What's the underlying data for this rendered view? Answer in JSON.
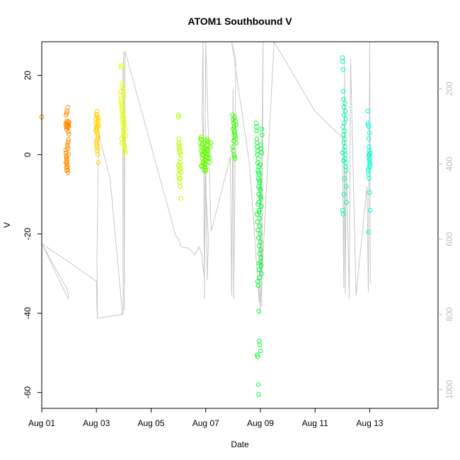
{
  "chart_data": {
    "type": "scatter",
    "title": "ATOM1 Southbound V",
    "xlabel": "Date",
    "ylabel": "V",
    "xlim": [
      0,
      14.5
    ],
    "ylim": [
      -64,
      28.5
    ],
    "x_ticks": [
      {
        "value": 0,
        "label": "Aug 01"
      },
      {
        "value": 2,
        "label": "Aug 03"
      },
      {
        "value": 4,
        "label": "Aug 05"
      },
      {
        "value": 6,
        "label": "Aug 07"
      },
      {
        "value": 8,
        "label": "Aug 09"
      },
      {
        "value": 10,
        "label": "Aug 11"
      },
      {
        "value": 12,
        "label": "Aug 13"
      }
    ],
    "y_ticks": [
      -60,
      -40,
      -20,
      0,
      20
    ],
    "right_axis": {
      "ylim": [
        1050,
        75
      ],
      "ticks": [
        200,
        400,
        600,
        800,
        1000
      ],
      "color": "#bebebe"
    },
    "trace_color": "#c8c8c8",
    "trace": [
      [
        0.0,
        612
      ],
      [
        0.92,
        732
      ],
      [
        0.96,
        745
      ],
      [
        0.98,
        760
      ],
      [
        0.0,
        612
      ],
      [
        0.98,
        660
      ],
      [
        2.0,
        712
      ],
      [
        2.02,
        780
      ],
      [
        2.04,
        810
      ],
      [
        2.02,
        650
      ],
      [
        2.08,
        320
      ],
      [
        2.5,
        440
      ],
      [
        2.9,
        755
      ],
      [
        2.95,
        800
      ],
      [
        2.05,
        810
      ],
      [
        2.98,
        800
      ],
      [
        2.96,
        200
      ],
      [
        3.0,
        100
      ],
      [
        3.02,
        790
      ],
      [
        3.05,
        100
      ],
      [
        4.9,
        590
      ],
      [
        5.0,
        600
      ],
      [
        5.1,
        620
      ],
      [
        5.4,
        625
      ],
      [
        5.6,
        642
      ],
      [
        5.75,
        620
      ],
      [
        5.85,
        640
      ],
      [
        5.95,
        705
      ],
      [
        6.0,
        400
      ],
      [
        6.05,
        710
      ],
      [
        6.1,
        600
      ],
      [
        5.86,
        270
      ],
      [
        5.9,
        75
      ],
      [
        5.95,
        760
      ],
      [
        6.0,
        75
      ],
      [
        6.2,
        580
      ],
      [
        6.9,
        380
      ],
      [
        6.95,
        750
      ],
      [
        7.0,
        200
      ],
      [
        7.02,
        760
      ],
      [
        7.05,
        600
      ],
      [
        7.1,
        120
      ],
      [
        6.95,
        75
      ],
      [
        7.6,
        400
      ],
      [
        7.8,
        600
      ],
      [
        7.95,
        770
      ],
      [
        8.0,
        400
      ],
      [
        8.05,
        780
      ],
      [
        8.1,
        75
      ],
      [
        7.98,
        800
      ],
      [
        8.5,
        75
      ],
      [
        10.0,
        260
      ],
      [
        11.0,
        330
      ],
      [
        11.05,
        730
      ],
      [
        11.08,
        120
      ],
      [
        11.1,
        745
      ],
      [
        11.15,
        400
      ],
      [
        11.25,
        760
      ],
      [
        11.3,
        120
      ],
      [
        11.5,
        750
      ],
      [
        11.9,
        460
      ],
      [
        11.95,
        740
      ],
      [
        12.0,
        75
      ],
      [
        12.02,
        720
      ]
    ],
    "series": [
      {
        "color": "#ff8c00",
        "x": [
          0.0,
          0.88,
          0.89,
          0.9,
          0.91,
          0.92,
          0.93,
          0.94,
          0.95,
          0.96,
          0.97,
          0.98,
          0.99,
          1.0,
          0.88,
          0.89,
          0.9,
          0.91,
          0.92,
          0.93,
          0.94,
          0.95,
          0.96,
          0.97,
          0.88,
          0.9,
          0.92,
          0.94,
          0.96,
          0.98,
          0.89,
          0.91,
          0.93,
          0.95,
          0.97,
          0.99,
          0.9,
          0.92,
          0.94,
          0.96
        ],
        "y": [
          9.5,
          7.5,
          8,
          7,
          6.5,
          8.5,
          7.2,
          7.8,
          6.9,
          8.2,
          7.4,
          7.7,
          7.1,
          8.3,
          1.2,
          0.5,
          -0.3,
          -1,
          -1.8,
          -2.5,
          -3,
          -3.8,
          -4.5,
          0,
          -2,
          -3.2,
          -4,
          2.5,
          3.2,
          3.8,
          10,
          10.5,
          11,
          12,
          5.8,
          5.2,
          -0.5,
          -1.5,
          2,
          1.5
        ]
      },
      {
        "color": "#ffd000",
        "x": [
          1.98,
          1.99,
          2.0,
          2.01,
          2.02,
          2.03,
          2.04,
          2.05,
          2.06,
          2.07,
          1.99,
          2.01,
          2.03,
          2.05,
          2.07,
          1.98,
          2.0,
          2.02,
          2.04,
          2.06,
          2.01,
          2.03,
          2.05,
          2.02,
          2.04,
          2.06,
          2.08,
          2.0
        ],
        "y": [
          8,
          9,
          7,
          6,
          10,
          11,
          5,
          4,
          8.5,
          7.5,
          3,
          2,
          1,
          0,
          -2,
          6,
          6.5,
          9.5,
          5.5,
          4.5,
          3.5,
          2.5,
          1.5,
          7,
          8,
          6.8,
          9.2,
          10.2
        ]
      },
      {
        "color": "#e6ff00",
        "x": [
          2.88,
          2.89,
          2.9,
          2.91,
          2.92,
          2.93,
          2.94,
          2.95,
          2.96,
          2.97,
          2.98,
          2.99,
          3.0,
          3.01,
          3.02,
          3.03,
          3.04,
          3.05,
          3.06,
          3.07,
          2.9,
          2.92,
          2.94,
          2.96,
          2.98,
          3.0,
          3.02,
          2.91,
          2.93,
          2.95,
          2.97,
          2.99,
          3.01,
          3.03,
          3.05,
          2.92,
          2.94,
          2.96,
          2.98
        ],
        "y": [
          15,
          16,
          14,
          13,
          12,
          11,
          10,
          9,
          8,
          7,
          6,
          5,
          4.5,
          3.5,
          2.5,
          2,
          1.5,
          1,
          0.5,
          5,
          22,
          22.5,
          18,
          17,
          16.5,
          15.5,
          14.5,
          13.5,
          12.5,
          11.5,
          10.5,
          9.5,
          8.5,
          7.5,
          6.5,
          4,
          3,
          8,
          6
        ]
      },
      {
        "color": "#b2ff00",
        "x": [
          5.0,
          5.01,
          5.02,
          5.03,
          5.04,
          5.05,
          5.06,
          5.07,
          5.08,
          5.09,
          5.01,
          5.03,
          5.05,
          5.07,
          5.09,
          5.02,
          5.04,
          5.06,
          5.08,
          5.0,
          5.03,
          5.05,
          5.07
        ],
        "y": [
          9.5,
          10,
          4,
          2.5,
          1.5,
          0.5,
          -1,
          -2,
          -3.5,
          -4.5,
          -5,
          -6,
          -7,
          -8,
          -11,
          3,
          2,
          1,
          0,
          -2.5,
          -3,
          -4,
          -6
        ]
      },
      {
        "color": "#66ff00",
        "x": [
          5.8,
          5.82,
          5.84,
          5.86,
          5.88,
          5.9,
          5.92,
          5.94,
          5.96,
          5.98,
          6.0,
          6.02,
          6.04,
          6.06,
          6.08,
          6.1,
          6.12,
          6.14,
          6.16,
          6.18,
          5.81,
          5.83,
          5.85,
          5.87,
          5.89,
          5.91,
          5.93,
          5.95,
          5.97,
          5.99,
          6.01,
          6.03,
          6.05,
          6.07,
          6.09,
          6.11,
          5.85,
          5.9,
          5.95,
          6.0,
          6.05,
          5.88,
          5.92,
          5.96,
          6.02,
          5.84,
          5.94,
          6.04
        ],
        "y": [
          3,
          2,
          1,
          0,
          -1,
          -2,
          -3,
          -4,
          -2.5,
          -1.5,
          0.5,
          1.5,
          2.5,
          3.5,
          1,
          0,
          -1,
          -2,
          2,
          3,
          4,
          4.5,
          3.8,
          2.8,
          1.8,
          0.8,
          -0.2,
          -1.2,
          -2.2,
          -3.2,
          -3.8,
          0.2,
          1.2,
          2.2,
          3.2,
          -0.8,
          -3,
          0,
          1,
          -4,
          4,
          2.5,
          -1.8,
          0.6,
          3.6,
          -2.8,
          1.6,
          -0.6
        ]
      },
      {
        "color": "#33ff00",
        "x": [
          6.98,
          7.0,
          7.02,
          7.04,
          7.06,
          7.08,
          7.1,
          7.12,
          6.99,
          7.01,
          7.03,
          7.05,
          7.07,
          7.09,
          7.11,
          7.0,
          7.04,
          7.08,
          7.02,
          7.06
        ],
        "y": [
          10,
          9,
          8,
          7,
          6,
          5,
          4,
          3,
          2,
          1,
          0,
          -0.5,
          -1,
          8.5,
          7.5,
          6.5,
          5.5,
          4.5,
          3.5,
          9.5
        ]
      },
      {
        "color": "#00ff33",
        "x": [
          7.85,
          7.86,
          7.87,
          7.88,
          7.89,
          7.9,
          7.91,
          7.92,
          7.93,
          7.94,
          7.95,
          7.96,
          7.97,
          7.98,
          7.99,
          8.0,
          8.01,
          8.02,
          8.03,
          8.04,
          8.05,
          8.06,
          7.86,
          7.88,
          7.9,
          7.92,
          7.94,
          7.96,
          7.98,
          8.0,
          8.02,
          8.04,
          7.87,
          7.89,
          7.91,
          7.93,
          7.95,
          7.97,
          7.99,
          8.01,
          8.03,
          8.05,
          7.9,
          7.92,
          7.94,
          7.96,
          7.98,
          8.0,
          7.88,
          7.9,
          7.92,
          7.94,
          7.96,
          7.95,
          7.97,
          7.99,
          7.93,
          7.96,
          7.98,
          8.0,
          7.91,
          7.95
        ],
        "y": [
          8,
          6,
          4,
          2,
          0,
          -2,
          -4,
          -6,
          -8,
          -10,
          -12,
          -14,
          -16,
          -18,
          -20,
          -22,
          -24,
          -26,
          -28,
          -30,
          6.5,
          5,
          7,
          3,
          1,
          -1,
          -3,
          -5,
          -7,
          -9,
          -11,
          -13,
          -15,
          -17,
          -19,
          -21,
          -23,
          -25,
          -27,
          2.5,
          1.5,
          0.5,
          -32,
          -33,
          -39.5,
          -47,
          -48,
          -49.5,
          -50.5,
          -51,
          -58,
          -60.5,
          -27.5,
          -29,
          -31,
          -2.5,
          -4.5,
          -6.5,
          -8.5,
          -10.5,
          -12.5,
          -14.5
        ]
      },
      {
        "color": "#00ffa6",
        "x": [
          11.0,
          11.01,
          11.02,
          11.03,
          11.04,
          11.05,
          11.06,
          11.07,
          11.08,
          11.09,
          11.1,
          11.11,
          11.12,
          11.13,
          11.14,
          11.15,
          11.01,
          11.03,
          11.05,
          11.07,
          11.09,
          11.11,
          11.13,
          11.02,
          11.04,
          11.06,
          11.08,
          11.1,
          11.12,
          11.0,
          11.05
        ],
        "y": [
          24.5,
          23.5,
          21.5,
          16,
          14,
          12,
          10,
          8,
          6,
          4,
          2,
          0,
          -2,
          -4,
          -8,
          -12,
          -14,
          -15,
          -10,
          -6,
          13,
          11,
          9,
          7,
          5,
          3,
          1,
          -1,
          -3,
          0.5,
          -1.5
        ]
      },
      {
        "color": "#00ffd5",
        "x": [
          11.93,
          11.94,
          11.95,
          11.96,
          11.97,
          11.98,
          11.99,
          12.0,
          12.01,
          12.02,
          11.94,
          11.96,
          11.98,
          12.0,
          12.02,
          11.95,
          11.97,
          11.99,
          12.01,
          11.96,
          11.98,
          12.0,
          11.95,
          11.97
        ],
        "y": [
          11,
          8,
          7.5,
          4,
          2,
          1,
          0,
          -1,
          -2,
          -3,
          -4,
          -5,
          -6,
          -9.5,
          -14,
          -19.5,
          7,
          5.5,
          0.5,
          -0.5,
          -1.5,
          -2.5,
          -3.5,
          0
        ]
      }
    ]
  }
}
